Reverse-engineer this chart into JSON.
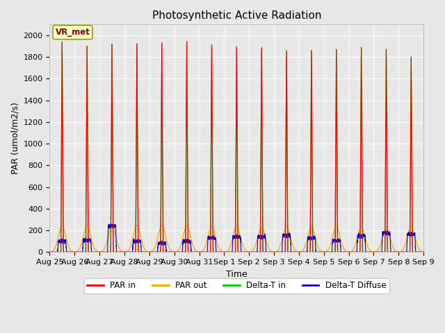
{
  "title": "Photosynthetic Active Radiation",
  "xlabel": "Time",
  "ylabel": "PAR (umol/m2/s)",
  "ylim": [
    0,
    2100
  ],
  "yticks": [
    0,
    200,
    400,
    600,
    800,
    1000,
    1200,
    1400,
    1600,
    1800,
    2000
  ],
  "background_color": "#e8e8e8",
  "axes_bg_color": "#e8e8e8",
  "grid_color": "#ffffff",
  "colors": {
    "PAR_in": "#ff0000",
    "PAR_out": "#ffa500",
    "Delta_T_in": "#00cc00",
    "Delta_T_Diffuse": "#0000cc"
  },
  "n_days": 15,
  "peak_PAR_in": [
    1940,
    1900,
    1920,
    1920,
    1930,
    1940,
    1910,
    1890,
    1890,
    1860,
    1860,
    1870,
    1890,
    1870,
    1800
  ],
  "peak_PAR_out": [
    240,
    245,
    240,
    245,
    245,
    240,
    235,
    240,
    235,
    240,
    235,
    235,
    230,
    230,
    235
  ],
  "peak_Delta_T_in": [
    1940,
    1900,
    1920,
    1925,
    1930,
    1945,
    1915,
    1895,
    1860,
    1855,
    1860,
    1870,
    1890,
    1870,
    1800
  ],
  "peak_Delta_T_Diff": [
    100,
    110,
    240,
    100,
    80,
    100,
    130,
    140,
    140,
    155,
    130,
    105,
    150,
    175,
    165
  ],
  "xtick_labels": [
    "Aug 25",
    "Aug 26",
    "Aug 27",
    "Aug 28",
    "Aug 29",
    "Aug 30",
    "Aug 31",
    "Sep 1",
    "Sep 2",
    "Sep 3",
    "Sep 4",
    "Sep 5",
    "Sep 6",
    "Sep 7",
    "Sep 8",
    "Sep 9"
  ],
  "legend_labels": [
    "PAR in",
    "PAR out",
    "Delta-T in",
    "Delta-T Diffuse"
  ],
  "annotation_text": "VR_met",
  "annotation_bg": "#ffffcc",
  "annotation_border": "#999900",
  "title_fontsize": 11,
  "label_fontsize": 9,
  "tick_fontsize": 8
}
